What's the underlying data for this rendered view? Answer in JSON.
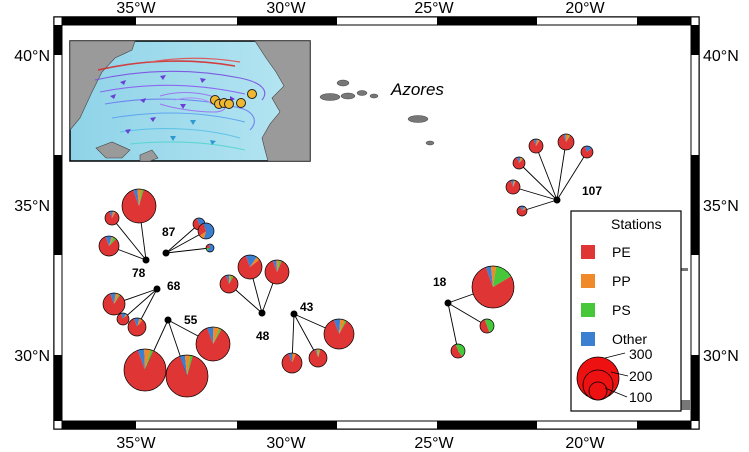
{
  "axes": {
    "x_ticks": [
      "35°W",
      "30°W",
      "25°W",
      "20°W"
    ],
    "y_ticks": [
      "40°N",
      "35°N",
      "30°N"
    ]
  },
  "region_label": "Azores",
  "clusters": [
    {
      "id": "c78",
      "label": "78",
      "slices": [
        [
          0.9,
          0.04,
          0.02,
          0.04
        ],
        [
          0.86,
          0.06,
          0,
          0.08
        ],
        [
          0.82,
          0.03,
          0.05,
          0.1
        ]
      ]
    },
    {
      "id": "c87",
      "label": "87",
      "slices": [
        [
          0.55,
          0.05,
          0,
          0.4
        ],
        [
          0.3,
          0.1,
          0,
          0.6
        ],
        [
          0.2,
          0,
          0.1,
          0.7
        ]
      ]
    },
    {
      "id": "c68",
      "label": "68",
      "slices": [
        [
          0.85,
          0.05,
          0.02,
          0.08
        ],
        [
          0.8,
          0.05,
          0,
          0.15
        ],
        [
          0.84,
          0.06,
          0,
          0.1
        ]
      ]
    },
    {
      "id": "c55",
      "label": "55",
      "slices": [
        [
          0.88,
          0.05,
          0.02,
          0.05
        ],
        [
          0.9,
          0.04,
          0.02,
          0.04
        ],
        [
          0.86,
          0.06,
          0.02,
          0.06
        ]
      ]
    },
    {
      "id": "c48",
      "label": "48",
      "slices": [
        [
          0.86,
          0.04,
          0.04,
          0.06
        ],
        [
          0.8,
          0.05,
          0,
          0.15
        ],
        [
          0.88,
          0.04,
          0.03,
          0.05
        ]
      ]
    },
    {
      "id": "c43",
      "label": "43",
      "slices": [
        [
          0.88,
          0.06,
          0,
          0.06
        ],
        [
          0.9,
          0.05,
          0.02,
          0.03
        ],
        [
          0.86,
          0.05,
          0.02,
          0.07
        ]
      ]
    },
    {
      "id": "c18",
      "label": "18",
      "slices": [
        [
          0.78,
          0.04,
          0.14,
          0.04
        ],
        [
          0.5,
          0,
          0.5,
          0
        ],
        [
          0.55,
          0,
          0.45,
          0
        ]
      ]
    },
    {
      "id": "c107",
      "label": "107",
      "slices": [
        [
          0.85,
          0.07,
          0,
          0.08
        ],
        [
          0.85,
          0.08,
          0.02,
          0.05
        ],
        [
          0.8,
          0,
          0,
          0.2
        ],
        [
          0.82,
          0.06,
          0.02,
          0.1
        ],
        [
          0.88,
          0.05,
          0,
          0.07
        ],
        [
          0.78,
          0.07,
          0,
          0.15
        ]
      ]
    }
  ],
  "legend": {
    "title": "Stations",
    "items": [
      {
        "name": "PE",
        "color": "#e03535"
      },
      {
        "name": "PP",
        "color": "#f0892a"
      },
      {
        "name": "PS",
        "color": "#46c83a"
      },
      {
        "name": "Other",
        "color": "#3a7fd0"
      }
    ],
    "size_values": [
      "300",
      "200",
      "100"
    ]
  },
  "inset": {
    "description_icon": "north-atlantic-current-map",
    "station_marker_color": "#f0b830"
  }
}
